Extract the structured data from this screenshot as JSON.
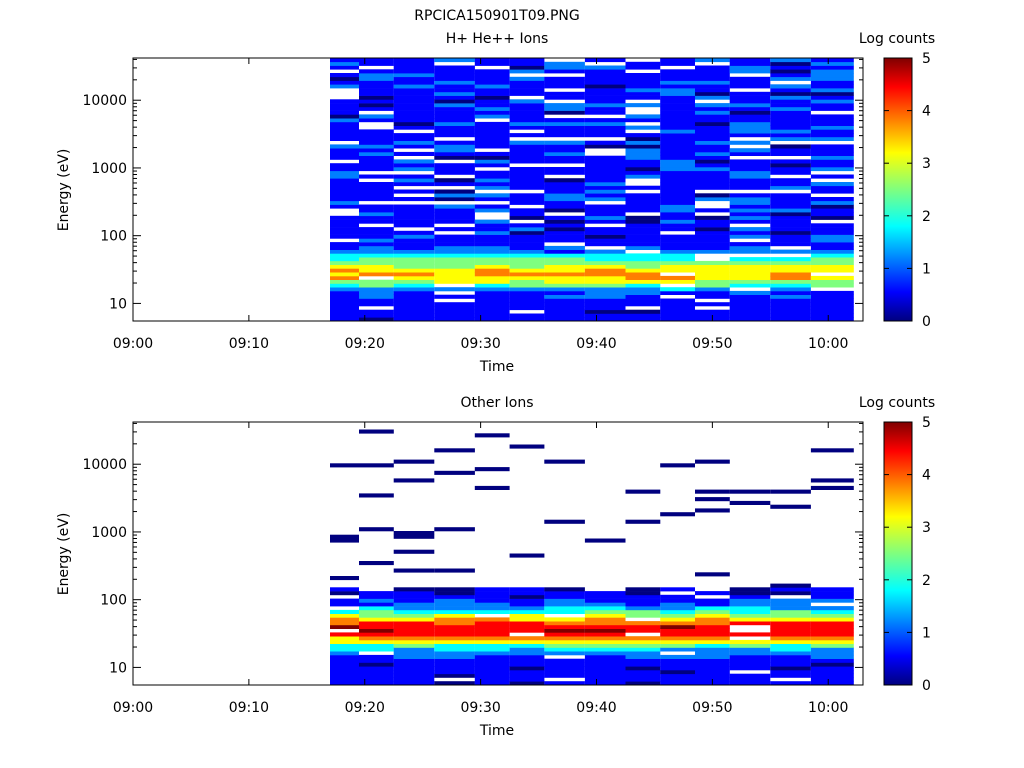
{
  "figure_title": "RPCICA150901T09.PNG",
  "chart_data": [
    {
      "type": "heatmap",
      "title": "H+ He++ Ions",
      "xlabel": "Time",
      "ylabel": "Energy (eV)",
      "colorbar_label": "Log counts",
      "colorbar_ticks": [
        "0",
        "1",
        "2",
        "3",
        "4",
        "5"
      ],
      "colorbar_range": [
        0,
        5
      ],
      "y_scale": "log",
      "ylim": [
        5.5,
        42000
      ],
      "xlim": [
        "09:00",
        "10:03"
      ],
      "x_ticks": [
        "09:00",
        "09:10",
        "09:20",
        "09:30",
        "09:40",
        "09:50",
        "10:00"
      ],
      "y_ticks": [
        "10",
        "100",
        "1000",
        "10000"
      ],
      "data_start": "09:17",
      "time_bins": [
        "09:18",
        "09:21",
        "09:24",
        "09:28",
        "09:31",
        "09:34",
        "09:37",
        "09:41",
        "09:44",
        "09:47",
        "09:50",
        "09:53",
        "09:57",
        "10:00"
      ],
      "low_energy_profile": [
        {
          "energy_eV": 8,
          "log_counts": 0.6
        },
        {
          "energy_eV": 11,
          "log_counts": 0.7
        },
        {
          "energy_eV": 15,
          "log_counts": 0.9
        },
        {
          "energy_eV": 20,
          "log_counts": 2.6
        },
        {
          "energy_eV": 26,
          "log_counts": 3.6
        },
        {
          "energy_eV": 34,
          "log_counts": 3.0
        },
        {
          "energy_eV": 45,
          "log_counts": 2.2
        },
        {
          "energy_eV": 60,
          "log_counts": 1.1
        },
        {
          "energy_eV": 80,
          "log_counts": 0.6
        }
      ],
      "background_log_counts": 0.6,
      "colormap": [
        "#00007f",
        "#0000ff",
        "#007fff",
        "#00ffff",
        "#7fff7f",
        "#ffff00",
        "#ff7f00",
        "#ff0000",
        "#7f0000"
      ]
    },
    {
      "type": "heatmap",
      "title": "Other Ions",
      "xlabel": "Time",
      "ylabel": "Energy (eV)",
      "colorbar_label": "Log counts",
      "colorbar_ticks": [
        "0",
        "1",
        "2",
        "3",
        "4",
        "5"
      ],
      "colorbar_range": [
        0,
        5
      ],
      "y_scale": "log",
      "ylim": [
        5.5,
        42000
      ],
      "xlim": [
        "09:00",
        "10:03"
      ],
      "x_ticks": [
        "09:00",
        "09:10",
        "09:20",
        "09:30",
        "09:40",
        "09:50",
        "10:00"
      ],
      "y_ticks": [
        "10",
        "100",
        "1000",
        "10000"
      ],
      "data_start": "09:17",
      "time_bins": [
        "09:18",
        "09:21",
        "09:24",
        "09:28",
        "09:31",
        "09:34",
        "09:37",
        "09:41",
        "09:44",
        "09:47",
        "09:50",
        "09:53",
        "09:57",
        "10:00"
      ],
      "low_energy_profile": [
        {
          "energy_eV": 9,
          "log_counts": 0.5
        },
        {
          "energy_eV": 13,
          "log_counts": 0.6
        },
        {
          "energy_eV": 19,
          "log_counts": 1.6
        },
        {
          "energy_eV": 24,
          "log_counts": 3.0
        },
        {
          "energy_eV": 30,
          "log_counts": 4.3
        },
        {
          "energy_eV": 38,
          "log_counts": 4.6
        },
        {
          "energy_eV": 48,
          "log_counts": 3.8
        },
        {
          "energy_eV": 62,
          "log_counts": 2.4
        },
        {
          "energy_eV": 80,
          "log_counts": 1.2
        },
        {
          "energy_eV": 110,
          "log_counts": 0.6
        },
        {
          "energy_eV": 150,
          "log_counts": 0.3
        }
      ],
      "background_log_counts": 0.2,
      "colormap": [
        "#00007f",
        "#0000ff",
        "#007fff",
        "#00ffff",
        "#7fff7f",
        "#ffff00",
        "#ff7f00",
        "#ff0000",
        "#7f0000"
      ]
    }
  ]
}
